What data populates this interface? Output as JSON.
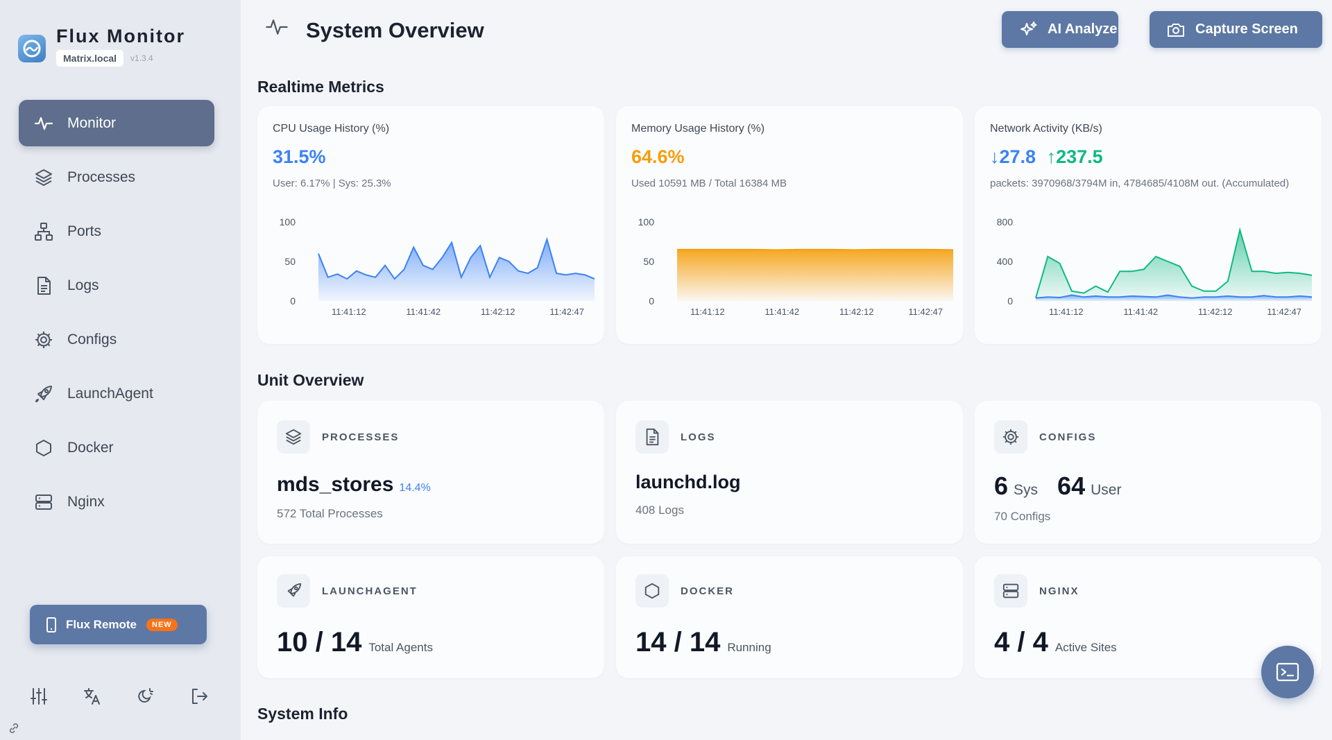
{
  "app": {
    "name": "Flux Monitor",
    "host": "Matrix.local",
    "version": "v1.3.4",
    "accent": "#5d78a4"
  },
  "nav": [
    {
      "label": "Monitor",
      "icon": "activity-icon",
      "active": true
    },
    {
      "label": "Processes",
      "icon": "layers-icon",
      "active": false
    },
    {
      "label": "Ports",
      "icon": "network-icon",
      "active": false
    },
    {
      "label": "Logs",
      "icon": "file-text-icon",
      "active": false
    },
    {
      "label": "Configs",
      "icon": "gear-icon",
      "active": false
    },
    {
      "label": "LaunchAgent",
      "icon": "rocket-icon",
      "active": false
    },
    {
      "label": "Docker",
      "icon": "hexagon-icon",
      "active": false
    },
    {
      "label": "Nginx",
      "icon": "server-icon",
      "active": false
    }
  ],
  "remote": {
    "label": "Flux Remote",
    "badge": "NEW"
  },
  "header": {
    "title": "System Overview",
    "ai_label": "AI Analyze",
    "capture_label": "Capture Screen"
  },
  "sections": {
    "metrics": "Realtime Metrics",
    "units": "Unit Overview",
    "sysinfo": "System Info"
  },
  "metrics": {
    "cpu": {
      "title": "CPU Usage History (%)",
      "value": "31.5%",
      "sub": "User: 6.17% | Sys: 25.3%",
      "color": "#3b82f6"
    },
    "memory": {
      "title": "Memory Usage History (%)",
      "value": "64.6%",
      "sub": "Used 10591 MB / Total 16384 MB",
      "color": "#f59e0b"
    },
    "network": {
      "title": "Network Activity (KB/s)",
      "down": "27.8",
      "up": "237.5",
      "sub": "packets: 3970968/3794M in, 4784685/4108M out. (Accumulated)",
      "down_color": "#3b82f6",
      "up_color": "#10b981"
    }
  },
  "units": {
    "processes": {
      "label": "PROCESSES",
      "name": "mds_stores",
      "pct": "14.4%",
      "sub": "572 Total Processes"
    },
    "logs": {
      "label": "LOGS",
      "name": "launchd.log",
      "sub": "408 Logs"
    },
    "configs": {
      "label": "CONFIGS",
      "sys_num": "6",
      "sys_label": "Sys",
      "user_num": "64",
      "user_label": "User",
      "sub": "70 Configs"
    },
    "launchagent": {
      "label": "LAUNCHAGENT",
      "value": "10 / 14",
      "unit": "Total Agents"
    },
    "docker": {
      "label": "DOCKER",
      "value": "14 / 14",
      "unit": "Running"
    },
    "nginx": {
      "label": "NGINX",
      "value": "4 / 4",
      "unit": "Active Sites"
    }
  },
  "chart_data": [
    {
      "type": "area",
      "title": "CPU Usage History (%)",
      "xlabels": [
        "11:41:12",
        "11:41:42",
        "11:42:12",
        "11:42:47"
      ],
      "yticks": [
        "100",
        "50",
        "0"
      ],
      "ylim": [
        0,
        100
      ],
      "series": [
        {
          "color": "#3b82f6",
          "values": [
            60,
            30,
            34,
            28,
            38,
            33,
            30,
            45,
            28,
            40,
            68,
            45,
            40,
            55,
            74,
            30,
            55,
            70,
            30,
            55,
            50,
            38,
            35,
            42,
            78,
            35,
            33,
            35,
            33,
            28
          ]
        }
      ]
    },
    {
      "type": "area",
      "title": "Memory Usage History (%)",
      "xlabels": [
        "11:41:12",
        "11:41:42",
        "11:42:12",
        "11:42:47"
      ],
      "yticks": [
        "100",
        "50",
        "0"
      ],
      "ylim": [
        0,
        100
      ],
      "series": [
        {
          "color": "#f59e0b",
          "values": [
            65,
            65,
            65,
            65,
            65,
            64.6,
            65,
            65,
            65,
            64.6,
            65,
            65,
            65,
            65,
            64.6
          ]
        }
      ]
    },
    {
      "type": "area",
      "title": "Network Activity (KB/s)",
      "xlabels": [
        "11:41:12",
        "11:41:42",
        "11:42:12",
        "11:42:47"
      ],
      "yticks": [
        "800",
        "400",
        "0"
      ],
      "ylim": [
        0,
        800
      ],
      "series": [
        {
          "name": "in",
          "color": "#3b82f6",
          "values": [
            30,
            40,
            35,
            60,
            40,
            50,
            40,
            40,
            50,
            45,
            40,
            60,
            40,
            30,
            40,
            40,
            50,
            40,
            40,
            55,
            40,
            40,
            50,
            40
          ]
        },
        {
          "name": "out",
          "color": "#10b981",
          "values": [
            30,
            450,
            380,
            100,
            80,
            150,
            90,
            300,
            300,
            320,
            450,
            400,
            350,
            150,
            100,
            100,
            200,
            720,
            300,
            300,
            280,
            290,
            280,
            260
          ]
        }
      ]
    }
  ]
}
